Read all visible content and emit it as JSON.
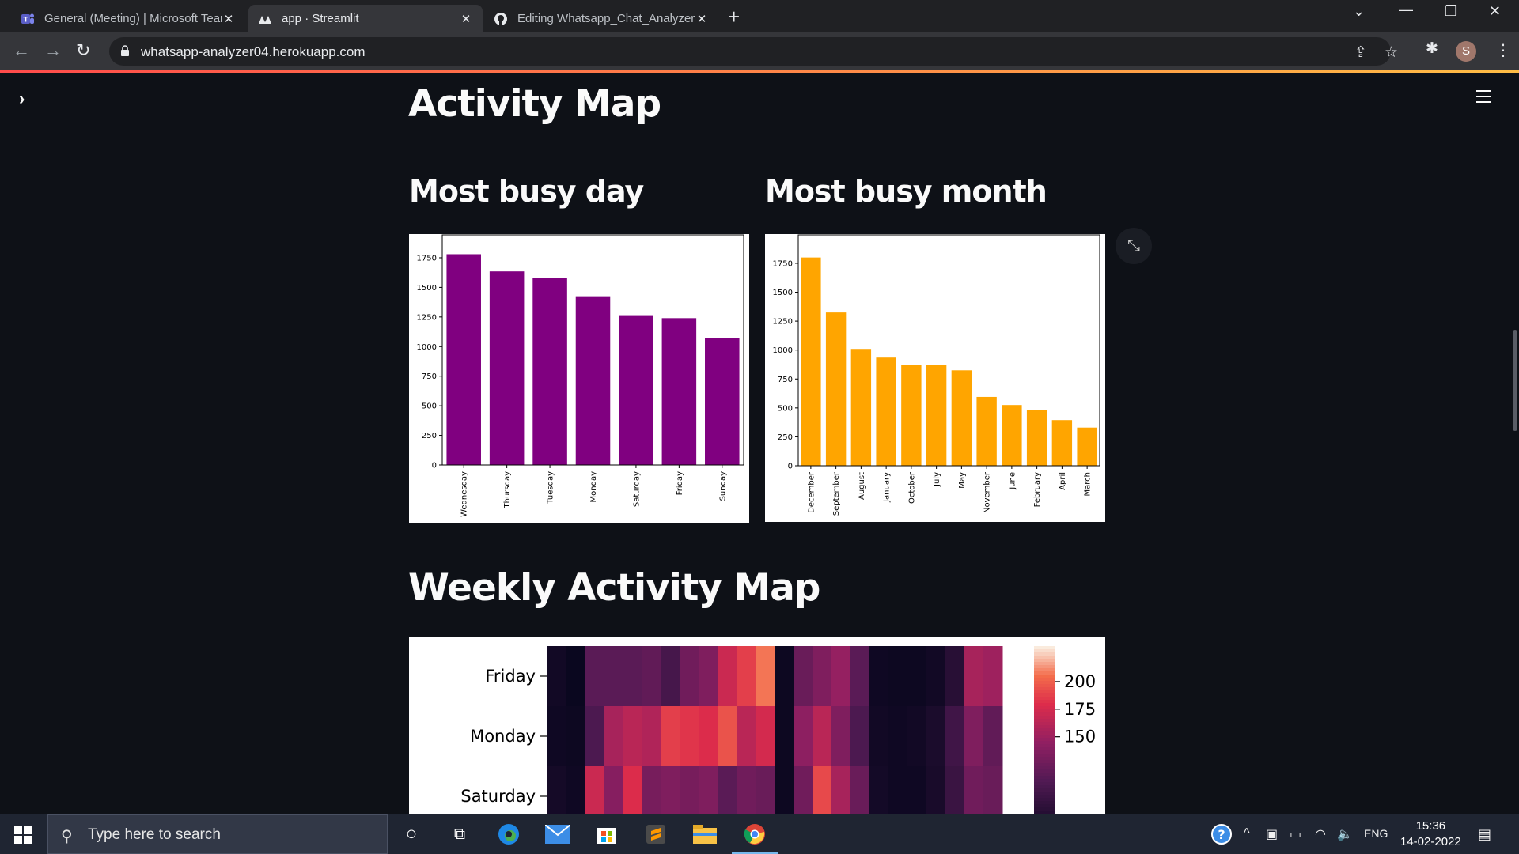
{
  "browser": {
    "tabs": [
      {
        "title": "General (Meeting) | Microsoft Teams",
        "icon": "teams-icon"
      },
      {
        "title": "app · Streamlit",
        "icon": "streamlit-icon"
      },
      {
        "title": "Editing Whatsapp_Chat_Analyzer",
        "icon": "github-icon"
      }
    ],
    "address": "whatsapp-analyzer04.herokuapp.com",
    "profile_initial": "S"
  },
  "page": {
    "heading": "Activity Map",
    "busy_day_heading": "Most busy day",
    "busy_month_heading": "Most busy month",
    "weekly_heading": "Weekly Activity Map"
  },
  "chart_data": [
    {
      "type": "bar",
      "categories": [
        "Wednesday",
        "Thursday",
        "Tuesday",
        "Monday",
        "Saturday",
        "Friday",
        "Sunday"
      ],
      "values": [
        1780,
        1635,
        1580,
        1425,
        1265,
        1240,
        1075
      ],
      "ylim": [
        0,
        1850
      ],
      "yticks": [
        0,
        250,
        500,
        750,
        1000,
        1250,
        1500,
        1750
      ],
      "color": "#800080"
    },
    {
      "type": "bar",
      "categories": [
        "December",
        "September",
        "August",
        "January",
        "October",
        "July",
        "May",
        "November",
        "June",
        "February",
        "April",
        "March"
      ],
      "values": [
        1800,
        1325,
        1010,
        935,
        870,
        870,
        825,
        595,
        525,
        485,
        395,
        330
      ],
      "ylim": [
        0,
        1900
      ],
      "yticks": [
        0,
        250,
        500,
        750,
        1000,
        1250,
        1500,
        1750
      ],
      "color": "#ffa500"
    },
    {
      "type": "heatmap",
      "rows": [
        "Friday",
        "Monday",
        "Saturday"
      ],
      "colorbar_ticks": [
        200,
        175,
        150
      ],
      "values": [
        [
          12,
          6,
          70,
          70,
          70,
          75,
          55,
          85,
          95,
          140,
          160,
          185,
          8,
          80,
          95,
          110,
          70,
          10,
          8,
          8,
          12,
          30,
          120,
          115
        ],
        [
          10,
          8,
          60,
          120,
          130,
          125,
          160,
          155,
          150,
          170,
          130,
          145,
          8,
          105,
          130,
          95,
          60,
          12,
          10,
          12,
          20,
          50,
          95,
          75
        ],
        [
          15,
          10,
          140,
          100,
          150,
          90,
          95,
          90,
          95,
          70,
          85,
          80,
          8,
          85,
          165,
          120,
          80,
          14,
          10,
          10,
          18,
          45,
          85,
          80
        ]
      ]
    }
  ]
}
